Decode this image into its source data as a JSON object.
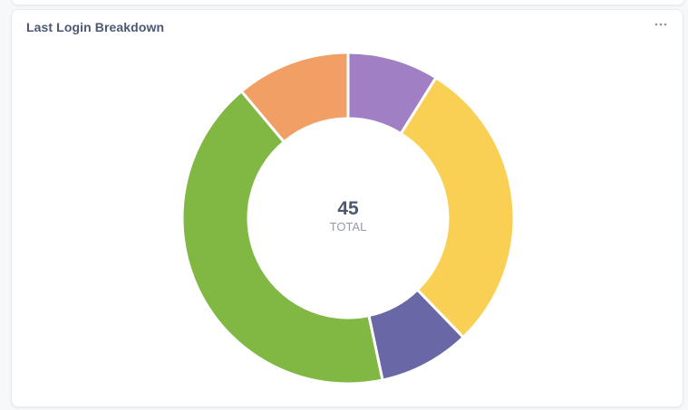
{
  "card": {
    "title": "Last Login Breakdown",
    "menu_icon": "ellipsis-icon"
  },
  "chart_data": {
    "type": "pie",
    "title": "Last Login Breakdown",
    "donut": true,
    "total": {
      "value": "45",
      "label": "TOTAL"
    },
    "slices": [
      {
        "value": 4,
        "color": "#a07fc4"
      },
      {
        "value": 13,
        "color": "#f9cf54"
      },
      {
        "value": 4,
        "color": "#6a67a6"
      },
      {
        "value": 19,
        "color": "#80b843"
      },
      {
        "value": 5,
        "color": "#f19f65"
      }
    ]
  }
}
